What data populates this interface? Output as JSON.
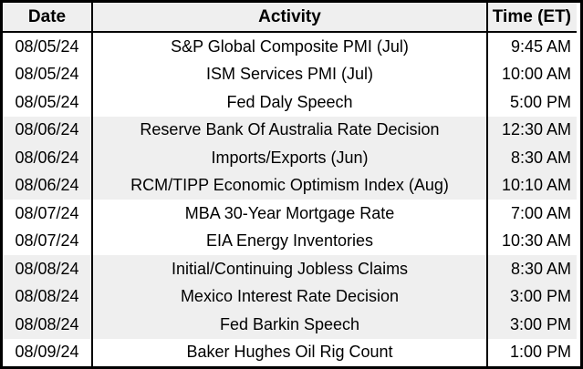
{
  "table": {
    "columns": [
      {
        "key": "date",
        "label": "Date"
      },
      {
        "key": "activity",
        "label": "Activity"
      },
      {
        "key": "time",
        "label": "Time (ET)"
      }
    ],
    "rows": [
      {
        "date": "08/05/24",
        "activity": "S&P Global Composite PMI (Jul)",
        "time": "9:45 AM",
        "shaded": false
      },
      {
        "date": "08/05/24",
        "activity": "ISM Services PMI (Jul)",
        "time": "10:00 AM",
        "shaded": false
      },
      {
        "date": "08/05/24",
        "activity": "Fed Daly Speech",
        "time": "5:00 PM",
        "shaded": false
      },
      {
        "date": "08/06/24",
        "activity": "Reserve Bank Of Australia Rate Decision",
        "time": "12:30 AM",
        "shaded": true
      },
      {
        "date": "08/06/24",
        "activity": "Imports/Exports (Jun)",
        "time": "8:30 AM",
        "shaded": true
      },
      {
        "date": "08/06/24",
        "activity": "RCM/TIPP Economic Optimism Index (Aug)",
        "time": "10:10 AM",
        "shaded": true
      },
      {
        "date": "08/07/24",
        "activity": "MBA 30-Year Mortgage Rate",
        "time": "7:00 AM",
        "shaded": false
      },
      {
        "date": "08/07/24",
        "activity": "EIA Energy Inventories",
        "time": "10:30 AM",
        "shaded": false
      },
      {
        "date": "08/08/24",
        "activity": "Initial/Continuing Jobless Claims",
        "time": "8:30 AM",
        "shaded": true
      },
      {
        "date": "08/08/24",
        "activity": "Mexico Interest Rate Decision",
        "time": "3:00 PM",
        "shaded": true
      },
      {
        "date": "08/08/24",
        "activity": "Fed Barkin Speech",
        "time": "3:00 PM",
        "shaded": true
      },
      {
        "date": "08/09/24",
        "activity": "Baker Hughes Oil Rig Count",
        "time": "1:00 PM",
        "shaded": false
      }
    ],
    "colors": {
      "header_bg": "#efefef",
      "shaded_row_bg": "#efefef",
      "row_bg": "#ffffff",
      "border": "#000000",
      "text": "#000000"
    }
  }
}
